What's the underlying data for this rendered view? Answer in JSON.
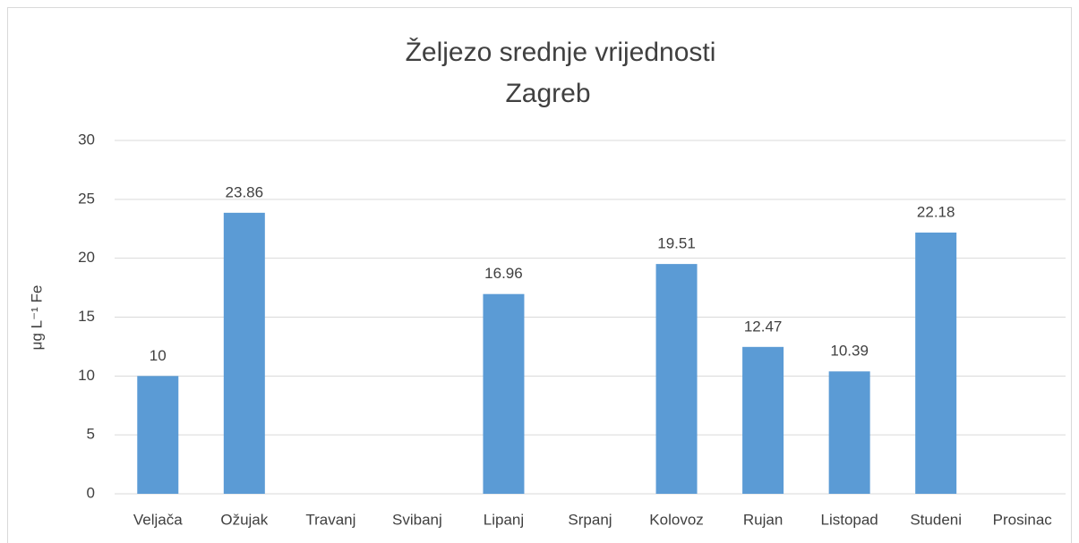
{
  "chart_data": {
    "type": "bar",
    "title": "Željezo srednje vrijednosti",
    "subtitle": "Zagreb",
    "y_label": "μg L⁻¹ Fe",
    "categories": [
      "Veljača",
      "Ožujak",
      "Travanj",
      "Svibanj",
      "Lipanj",
      "Srpanj",
      "Kolovoz",
      "Rujan",
      "Listopad",
      "Studeni",
      "Prosinac"
    ],
    "values": [
      10,
      23.86,
      null,
      null,
      16.96,
      null,
      19.51,
      12.47,
      10.39,
      22.18,
      null
    ],
    "color": "#5b9bd5",
    "ylim": [
      0,
      30
    ],
    "yticks": [
      0,
      5,
      10,
      15,
      20,
      25,
      30
    ],
    "grid": true
  }
}
